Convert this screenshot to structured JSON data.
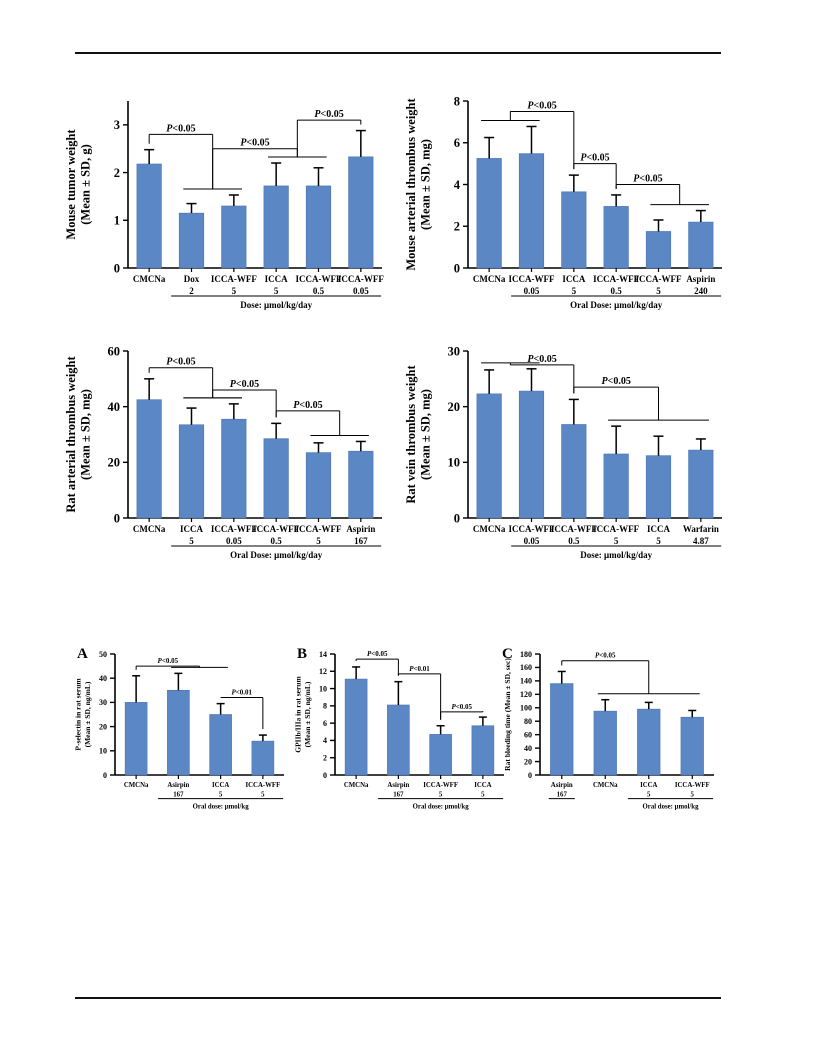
{
  "page": {
    "top_rule": true,
    "bottom_rule": true
  },
  "style": {
    "bar_color": "#5b87c5",
    "bar_edge_color": "#4a73b0",
    "axis_color": "#000000"
  },
  "chart_data": [
    {
      "id": "c1",
      "type": "bar",
      "panel_label": "",
      "ylabel": [
        "Mouse tumor weight",
        "(Mean ± SD, g)"
      ],
      "ylim": [
        0,
        3.5
      ],
      "yticks": [
        0,
        1,
        2,
        3
      ],
      "ytick_labels": [
        "0",
        "1",
        "2",
        "3"
      ],
      "categories": [
        [
          "CMCNa"
        ],
        [
          "Dox",
          "2"
        ],
        [
          "ICCA-WFF",
          "5"
        ],
        [
          "ICCA",
          "5"
        ],
        [
          "ICCA-WFF",
          "0.5"
        ],
        [
          "ICCA-WFF",
          "0.05"
        ]
      ],
      "values": [
        2.18,
        1.15,
        1.3,
        1.72,
        1.72,
        2.33
      ],
      "errors": [
        0.3,
        0.2,
        0.23,
        0.48,
        0.38,
        0.55
      ],
      "dose_label": "Dose: μmol/kg/day",
      "dose_span": [
        1,
        5
      ],
      "brackets": [
        {
          "p": "0.05",
          "p_op": "<",
          "left": [
            0,
            0
          ],
          "right": [
            1,
            2
          ],
          "y": 2.8
        },
        {
          "p": "0.05",
          "p_op": "<",
          "left": [
            1,
            2
          ],
          "right": [
            3,
            4
          ],
          "y": 2.5
        },
        {
          "p": "0.05",
          "p_op": "<",
          "left": [
            3,
            4
          ],
          "right": [
            5,
            5
          ],
          "y": 3.1
        }
      ]
    },
    {
      "id": "c2",
      "type": "bar",
      "panel_label": "",
      "ylabel": [
        "Mouse arterial thrombus weight",
        "(Mean ± SD, mg)"
      ],
      "ylim": [
        0,
        8
      ],
      "yticks": [
        0,
        2,
        4,
        6,
        8
      ],
      "ytick_labels": [
        "0",
        "2",
        "4",
        "6",
        "8"
      ],
      "categories": [
        [
          "CMCNa"
        ],
        [
          "ICCA-WFF",
          "0.05"
        ],
        [
          "ICCA",
          "5"
        ],
        [
          "ICCA-WFF",
          "0.5"
        ],
        [
          "ICCA-WFF",
          "5"
        ],
        [
          "Aspirin",
          "240"
        ]
      ],
      "values": [
        5.25,
        5.48,
        3.65,
        2.95,
        1.75,
        2.2
      ],
      "errors": [
        1.0,
        1.3,
        0.8,
        0.55,
        0.55,
        0.55
      ],
      "dose_label": "Oral Dose: μmol/kg/day",
      "dose_span": [
        1,
        5
      ],
      "brackets": [
        {
          "p": "0.05",
          "p_op": "<",
          "left": [
            0,
            1
          ],
          "right": [
            2,
            2
          ],
          "y": 7.5
        },
        {
          "p": "0.05",
          "p_op": "<",
          "left": [
            2,
            2
          ],
          "right": [
            3,
            3
          ],
          "y": 5.0
        },
        {
          "p": "0.05",
          "p_op": "<",
          "left": [
            3,
            3
          ],
          "right": [
            4,
            5
          ],
          "y": 4.0
        }
      ]
    },
    {
      "id": "c3",
      "type": "bar",
      "panel_label": "",
      "ylabel": [
        "Rat arterial thrombus weight",
        "(Mean ± SD, mg)"
      ],
      "ylim": [
        0,
        60
      ],
      "yticks": [
        0,
        20,
        40,
        60
      ],
      "ytick_labels": [
        "0",
        "20",
        "40",
        "60"
      ],
      "categories": [
        [
          "CMCNa"
        ],
        [
          "ICCA",
          "5"
        ],
        [
          "ICCA-WFF",
          "0.05"
        ],
        [
          "ICCA-WFF",
          "0.5"
        ],
        [
          "ICCA-WFF",
          "5"
        ],
        [
          "Aspirin",
          "167"
        ]
      ],
      "values": [
        42.5,
        33.5,
        35.5,
        28.5,
        23.5,
        24.0
      ],
      "errors": [
        7.5,
        6.0,
        5.5,
        5.5,
        3.5,
        3.5
      ],
      "dose_label": "Oral Dose: μmol/kg/day",
      "dose_span": [
        1,
        5
      ],
      "brackets": [
        {
          "p": "0.05",
          "p_op": "<",
          "left": [
            0,
            0
          ],
          "right": [
            1,
            2
          ],
          "y": 54
        },
        {
          "p": "0.05",
          "p_op": "<",
          "left": [
            1,
            2
          ],
          "right": [
            3,
            3
          ],
          "y": 46
        },
        {
          "p": "0.05",
          "p_op": "<",
          "left": [
            3,
            3
          ],
          "right": [
            4,
            5
          ],
          "y": 38.5
        }
      ]
    },
    {
      "id": "c4",
      "type": "bar",
      "panel_label": "",
      "ylabel": [
        "Rat vein thrombus weight",
        "(Mean ± SD, mg)"
      ],
      "ylim": [
        0,
        30
      ],
      "yticks": [
        0,
        10,
        20,
        30
      ],
      "ytick_labels": [
        "0",
        "10",
        "20",
        "30"
      ],
      "categories": [
        [
          "CMCNa"
        ],
        [
          "ICCA-WFF",
          "0.05"
        ],
        [
          "ICCA-WFF",
          "0.5"
        ],
        [
          "ICCA-WFF",
          "5"
        ],
        [
          "ICCA",
          "5"
        ],
        [
          "Warfarin",
          "4.87"
        ]
      ],
      "values": [
        22.3,
        22.8,
        16.8,
        11.5,
        11.2,
        12.2
      ],
      "errors": [
        4.3,
        4.0,
        4.5,
        5.0,
        3.5,
        2.0
      ],
      "dose_label": "Dose: μmol/kg/day",
      "dose_span": [
        1,
        5
      ],
      "brackets": [
        {
          "p": "0.05",
          "p_op": "<",
          "left": [
            0,
            1
          ],
          "right": [
            2,
            2
          ],
          "y": 27.5
        },
        {
          "p": "0.05",
          "p_op": "<",
          "left": [
            2,
            2
          ],
          "right": [
            3,
            5
          ],
          "y": 23.5
        }
      ]
    },
    {
      "id": "c5",
      "type": "bar",
      "panel_label": "A",
      "ylabel": [
        "P-selectin in rat serum",
        "(Mean ± SD, ng/mL)"
      ],
      "ylim": [
        0,
        50
      ],
      "yticks": [
        0,
        10,
        20,
        30,
        40,
        50
      ],
      "ytick_labels": [
        "0",
        "10",
        "20",
        "30",
        "40",
        "50"
      ],
      "categories": [
        [
          "CMCNa"
        ],
        [
          "Asirpin",
          "167"
        ],
        [
          "ICCA",
          "5"
        ],
        [
          "ICCA-WFF",
          "5"
        ]
      ],
      "values": [
        30.0,
        35.0,
        25.0,
        14.0
      ],
      "errors": [
        11.0,
        7.0,
        4.5,
        2.5
      ],
      "dose_label": "Oral dose: μmol/kg",
      "dose_span": [
        1,
        3
      ],
      "brackets": [
        {
          "p": "0.05",
          "p_op": "<",
          "left": [
            0,
            0
          ],
          "right": [
            1,
            2
          ],
          "y": 45
        },
        {
          "p": "0.01",
          "p_op": "<",
          "left": [
            2,
            2
          ],
          "right": [
            3,
            3
          ],
          "y": 32
        }
      ]
    },
    {
      "id": "c6",
      "type": "bar",
      "panel_label": "B",
      "ylabel": [
        "GPIIb/IIIa in rat serum",
        "(Mean ± SD, ng/mL)"
      ],
      "ylim": [
        0,
        14
      ],
      "yticks": [
        0,
        2,
        4,
        6,
        8,
        10,
        12,
        14
      ],
      "ytick_labels": [
        "0",
        "2",
        "4",
        "6",
        "8",
        "10",
        "12",
        "14"
      ],
      "categories": [
        [
          "CMCNa"
        ],
        [
          "Asirpin",
          "167"
        ],
        [
          "ICCA-WFF",
          "5"
        ],
        [
          "ICCA",
          "5"
        ]
      ],
      "values": [
        11.1,
        8.1,
        4.7,
        5.7
      ],
      "errors": [
        1.4,
        2.7,
        1.0,
        1.0
      ],
      "dose_label": "Oral dose: μmol/kg",
      "dose_span": [
        1,
        3
      ],
      "brackets": [
        {
          "p": "0.05",
          "p_op": "<",
          "left": [
            0,
            0
          ],
          "right": [
            1,
            1
          ],
          "y": 13.4
        },
        {
          "p": "0.01",
          "p_op": "<",
          "left": [
            1,
            1
          ],
          "right": [
            2,
            2
          ],
          "y": 11.7
        },
        {
          "p": "0.05",
          "p_op": "<",
          "left": [
            2,
            2
          ],
          "right": [
            3,
            3
          ],
          "y": 7.3
        }
      ]
    },
    {
      "id": "c7",
      "type": "bar",
      "panel_label": "C",
      "ylabel": [
        "Rat bleeding time (Mean ± SD, sec)"
      ],
      "ylim": [
        0,
        180
      ],
      "yticks": [
        0,
        20,
        40,
        60,
        80,
        100,
        120,
        140,
        160,
        180
      ],
      "ytick_labels": [
        "0",
        "20",
        "40",
        "60",
        "80",
        "100",
        "120",
        "140",
        "160",
        "180"
      ],
      "categories": [
        [
          "Asirpin",
          "167"
        ],
        [
          "CMCNa"
        ],
        [
          "ICCA",
          "5"
        ],
        [
          "ICCA-WFF",
          "5"
        ]
      ],
      "values": [
        136,
        95,
        98,
        86
      ],
      "errors": [
        18,
        17,
        10,
        10
      ],
      "dose_label": "Oral dose: μmol/kg",
      "dose_span": [
        2,
        3
      ],
      "extra_underline": [
        0,
        0
      ],
      "brackets": [
        {
          "p": "0.05",
          "p_op": "<",
          "left": [
            0,
            0
          ],
          "right": [
            1,
            3
          ],
          "y": 170
        }
      ]
    }
  ]
}
